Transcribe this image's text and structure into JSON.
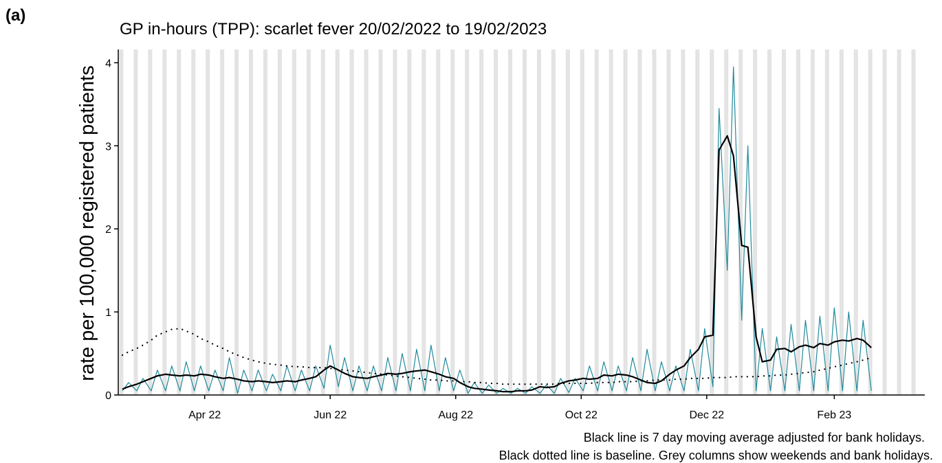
{
  "panel_label": "(a)",
  "chart_data": {
    "type": "line",
    "title": "GP in-hours (TPP): scarlet fever 20/02/2022 to 19/02/2023",
    "y_label": "rate per 100,000 registered patients",
    "notes": [
      "Black line is 7 day moving average adjusted for bank holidays.",
      "Black dotted line is baseline. Grey columns show weekends and bank holidays."
    ],
    "x": [
      "2022-02-20",
      "2022-02-23",
      "2022-02-27",
      "2022-03-02",
      "2022-03-06",
      "2022-03-09",
      "2022-03-13",
      "2022-03-16",
      "2022-03-20",
      "2022-03-23",
      "2022-03-27",
      "2022-03-30",
      "2022-04-03",
      "2022-04-06",
      "2022-04-10",
      "2022-04-13",
      "2022-04-17",
      "2022-04-20",
      "2022-04-24",
      "2022-04-27",
      "2022-05-01",
      "2022-05-04",
      "2022-05-08",
      "2022-05-11",
      "2022-05-15",
      "2022-05-18",
      "2022-05-22",
      "2022-05-25",
      "2022-05-29",
      "2022-06-01",
      "2022-06-05",
      "2022-06-08",
      "2022-06-12",
      "2022-06-15",
      "2022-06-19",
      "2022-06-22",
      "2022-06-26",
      "2022-06-29",
      "2022-07-03",
      "2022-07-06",
      "2022-07-10",
      "2022-07-13",
      "2022-07-17",
      "2022-07-20",
      "2022-07-24",
      "2022-07-27",
      "2022-07-31",
      "2022-08-03",
      "2022-08-07",
      "2022-08-10",
      "2022-08-14",
      "2022-08-17",
      "2022-08-21",
      "2022-08-24",
      "2022-08-28",
      "2022-08-31",
      "2022-09-04",
      "2022-09-07",
      "2022-09-11",
      "2022-09-14",
      "2022-09-18",
      "2022-09-21",
      "2022-09-25",
      "2022-09-28",
      "2022-10-02",
      "2022-10-05",
      "2022-10-09",
      "2022-10-12",
      "2022-10-16",
      "2022-10-19",
      "2022-10-23",
      "2022-10-26",
      "2022-10-30",
      "2022-11-02",
      "2022-11-06",
      "2022-11-09",
      "2022-11-13",
      "2022-11-16",
      "2022-11-20",
      "2022-11-23",
      "2022-11-27",
      "2022-11-30",
      "2022-12-04",
      "2022-12-07",
      "2022-12-11",
      "2022-12-14",
      "2022-12-18",
      "2022-12-21",
      "2022-12-25",
      "2022-12-28",
      "2023-01-01",
      "2023-01-04",
      "2023-01-08",
      "2023-01-11",
      "2023-01-15",
      "2023-01-18",
      "2023-01-22",
      "2023-01-25",
      "2023-01-29",
      "2023-02-01",
      "2023-02-05",
      "2023-02-08",
      "2023-02-12",
      "2023-02-15",
      "2023-02-19"
    ],
    "series": [
      {
        "color": "#1f8a9c",
        "style": "solid",
        "width": 1.2,
        "values": [
          0.05,
          0.15,
          0.05,
          0.2,
          0.05,
          0.3,
          0.05,
          0.35,
          0.05,
          0.4,
          0.05,
          0.35,
          0.05,
          0.3,
          0.05,
          0.45,
          0.02,
          0.3,
          0.05,
          0.3,
          0.05,
          0.25,
          0.05,
          0.35,
          0.05,
          0.3,
          0.05,
          0.35,
          0.08,
          0.6,
          0.1,
          0.45,
          0.05,
          0.35,
          0.05,
          0.35,
          0.05,
          0.45,
          0.05,
          0.5,
          0.05,
          0.55,
          0.05,
          0.6,
          0.05,
          0.45,
          0.05,
          0.3,
          0.02,
          0.15,
          0.02,
          0.12,
          0.02,
          0.08,
          0.02,
          0.08,
          0.02,
          0.1,
          0.02,
          0.12,
          0.02,
          0.2,
          0.03,
          0.2,
          0.05,
          0.35,
          0.05,
          0.4,
          0.05,
          0.35,
          0.05,
          0.45,
          0.05,
          0.55,
          0.05,
          0.4,
          0.05,
          0.35,
          0.05,
          0.55,
          0.05,
          0.8,
          0.1,
          3.45,
          1.5,
          3.95,
          0.9,
          3.0,
          0.05,
          0.8,
          0.05,
          0.7,
          0.05,
          0.85,
          0.05,
          0.9,
          0.05,
          0.95,
          0.05,
          1.05,
          0.05,
          1.0,
          0.05,
          0.9,
          0.05
        ]
      },
      {
        "color": "#000000",
        "style": "solid",
        "width": 2.2,
        "values": [
          0.07,
          0.1,
          0.13,
          0.16,
          0.2,
          0.23,
          0.25,
          0.24,
          0.23,
          0.24,
          0.23,
          0.25,
          0.24,
          0.22,
          0.2,
          0.21,
          0.19,
          0.17,
          0.16,
          0.17,
          0.16,
          0.15,
          0.16,
          0.17,
          0.16,
          0.18,
          0.2,
          0.22,
          0.3,
          0.35,
          0.3,
          0.26,
          0.22,
          0.21,
          0.2,
          0.22,
          0.24,
          0.26,
          0.25,
          0.26,
          0.28,
          0.29,
          0.3,
          0.28,
          0.25,
          0.22,
          0.2,
          0.15,
          0.1,
          0.08,
          0.07,
          0.06,
          0.05,
          0.04,
          0.04,
          0.05,
          0.05,
          0.06,
          0.1,
          0.09,
          0.1,
          0.14,
          0.17,
          0.18,
          0.2,
          0.19,
          0.2,
          0.24,
          0.23,
          0.25,
          0.24,
          0.22,
          0.18,
          0.15,
          0.14,
          0.17,
          0.25,
          0.3,
          0.35,
          0.45,
          0.55,
          0.7,
          0.72,
          2.95,
          3.12,
          2.88,
          1.8,
          1.78,
          0.7,
          0.4,
          0.42,
          0.55,
          0.56,
          0.52,
          0.58,
          0.6,
          0.57,
          0.62,
          0.6,
          0.64,
          0.66,
          0.65,
          0.68,
          0.66,
          0.57
        ]
      },
      {
        "color": "#000000",
        "style": "dotted",
        "width": 2.2,
        "values": [
          0.48,
          0.52,
          0.56,
          0.6,
          0.66,
          0.72,
          0.76,
          0.79,
          0.8,
          0.77,
          0.73,
          0.68,
          0.64,
          0.6,
          0.56,
          0.52,
          0.48,
          0.45,
          0.42,
          0.4,
          0.38,
          0.37,
          0.36,
          0.35,
          0.34,
          0.34,
          0.33,
          0.33,
          0.33,
          0.32,
          0.31,
          0.3,
          0.29,
          0.28,
          0.27,
          0.26,
          0.25,
          0.24,
          0.23,
          0.22,
          0.21,
          0.2,
          0.19,
          0.18,
          0.18,
          0.17,
          0.17,
          0.16,
          0.16,
          0.15,
          0.15,
          0.14,
          0.14,
          0.13,
          0.13,
          0.13,
          0.13,
          0.13,
          0.13,
          0.13,
          0.13,
          0.14,
          0.14,
          0.14,
          0.14,
          0.14,
          0.15,
          0.15,
          0.15,
          0.16,
          0.16,
          0.16,
          0.17,
          0.17,
          0.18,
          0.18,
          0.18,
          0.19,
          0.19,
          0.2,
          0.2,
          0.2,
          0.21,
          0.21,
          0.21,
          0.22,
          0.22,
          0.22,
          0.22,
          0.23,
          0.23,
          0.24,
          0.24,
          0.25,
          0.26,
          0.27,
          0.28,
          0.3,
          0.32,
          0.34,
          0.36,
          0.38,
          0.4,
          0.42,
          0.45
        ]
      }
    ],
    "xlim": [
      "2022-02-18",
      "2023-03-17"
    ],
    "xticks": [
      {
        "value": "2022-04-01",
        "label": "Apr 22"
      },
      {
        "value": "2022-06-01",
        "label": "Jun 22"
      },
      {
        "value": "2022-08-01",
        "label": "Aug 22"
      },
      {
        "value": "2022-10-01",
        "label": "Oct 22"
      },
      {
        "value": "2022-12-01",
        "label": "Dec 22"
      },
      {
        "value": "2023-02-01",
        "label": "Feb 23"
      }
    ],
    "ylim": [
      0,
      4.16
    ],
    "yticks": [
      0,
      1,
      2,
      3,
      4
    ],
    "weekend_columns": true,
    "weekend_color": "#e3e3e3"
  }
}
